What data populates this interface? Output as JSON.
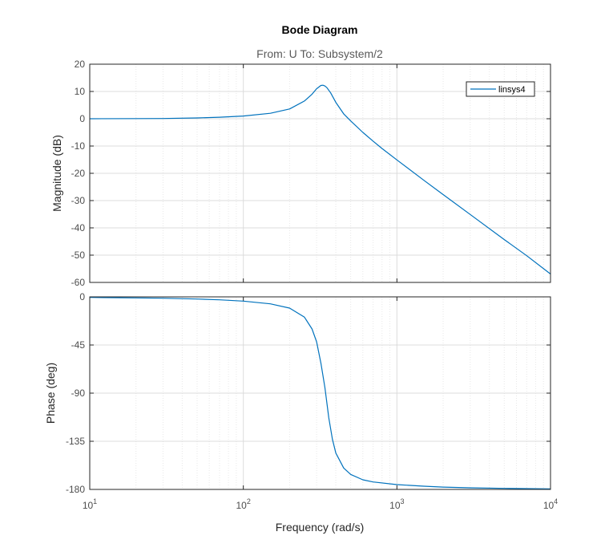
{
  "figure": {
    "title": "Bode Diagram",
    "subtitle": "From: U  To: Subsystem/2",
    "xlabel": "Frequency  (rad/s)"
  },
  "colors": {
    "series": "#0072bd",
    "grid_major": "#dcdcdc",
    "grid_minor": "#e8e8e8",
    "axes": "#262626",
    "tick_text": "#4d4d4d"
  },
  "chart_data": [
    {
      "type": "line",
      "name": "magnitude",
      "xscale": "log",
      "xlim": [
        10,
        10000
      ],
      "ylim": [
        -60,
        20
      ],
      "ylabel": "Magnitude (dB)",
      "yticks": [
        20,
        10,
        0,
        -10,
        -20,
        -30,
        -40,
        -50,
        -60
      ],
      "grid": true,
      "legend": {
        "placement": "top-right",
        "entries": [
          "linsys4"
        ]
      },
      "series": [
        {
          "name": "linsys4",
          "x": [
            10,
            20,
            30,
            50,
            70,
            100,
            150,
            200,
            250,
            280,
            300,
            320,
            330,
            340,
            350,
            370,
            400,
            450,
            500,
            600,
            700,
            800,
            1000,
            1500,
            2000,
            3000,
            5000,
            7000,
            10000
          ],
          "y": [
            0.0,
            0.05,
            0.1,
            0.3,
            0.55,
            1.0,
            2.0,
            3.6,
            6.5,
            9.0,
            11.0,
            12.2,
            12.3,
            12.0,
            11.4,
            9.5,
            6.0,
            1.8,
            -0.8,
            -5.0,
            -8.2,
            -10.9,
            -15.1,
            -22.6,
            -27.8,
            -35.1,
            -44.3,
            -50.2,
            -56.9
          ]
        }
      ]
    },
    {
      "type": "line",
      "name": "phase",
      "xscale": "log",
      "xlim": [
        10,
        10000
      ],
      "ylim": [
        -180,
        0
      ],
      "ylabel": "Phase (deg)",
      "yticks": [
        0,
        -45,
        -90,
        -135,
        -180
      ],
      "grid": true,
      "series": [
        {
          "name": "linsys4",
          "x": [
            10,
            20,
            30,
            50,
            70,
            100,
            150,
            200,
            250,
            280,
            300,
            320,
            340,
            360,
            380,
            400,
            450,
            500,
            600,
            700,
            1000,
            1500,
            2000,
            3000,
            5000,
            10000
          ],
          "y": [
            -0.5,
            -1.0,
            -1.3,
            -2.0,
            -2.8,
            -4.0,
            -6.5,
            -10.5,
            -19,
            -30,
            -42,
            -62,
            -85,
            -113,
            -133,
            -146,
            -160,
            -166,
            -171,
            -173,
            -175.5,
            -177,
            -177.8,
            -178.5,
            -179,
            -179.5
          ]
        }
      ]
    }
  ],
  "xticks": [
    {
      "base": "10",
      "exp": "1"
    },
    {
      "base": "10",
      "exp": "2"
    },
    {
      "base": "10",
      "exp": "3"
    },
    {
      "base": "10",
      "exp": "4"
    }
  ]
}
